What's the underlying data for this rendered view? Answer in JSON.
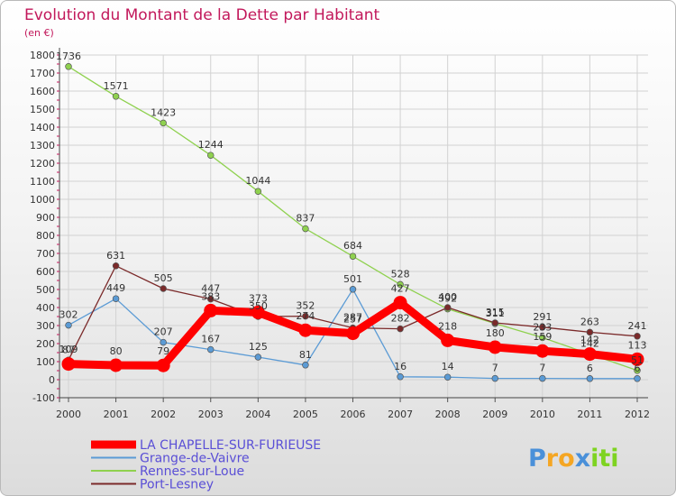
{
  "chart_data": {
    "type": "line",
    "title": "Evolution du Montant de la Dette par Habitant",
    "subtitle": "(en €)",
    "x": [
      "2000",
      "2001",
      "2002",
      "2003",
      "2004",
      "2005",
      "2006",
      "2007",
      "2008",
      "2009",
      "2010",
      "2011",
      "2012"
    ],
    "ylim": [
      -100,
      1800
    ],
    "yticks": [
      "-100",
      "0",
      "100",
      "200",
      "300",
      "400",
      "500",
      "600",
      "700",
      "800",
      "900",
      "1000",
      "1100",
      "1200",
      "1300",
      "1400",
      "1500",
      "1600",
      "1700",
      "1800"
    ],
    "grid": true,
    "legend_position": "bottom-left",
    "series": [
      {
        "name": "LA CHAPELLE-SUR-FURIEUSE",
        "color": "#ff0000",
        "values": [
          87,
          80,
          79,
          383,
          373,
          274,
          257,
          427,
          218,
          180,
          159,
          142,
          113
        ]
      },
      {
        "name": "Grange-de-Vaivre",
        "color": "#5b9bd5",
        "values": [
          302,
          449,
          207,
          167,
          125,
          81,
          501,
          16,
          14,
          7,
          7,
          6,
          6
        ]
      },
      {
        "name": "Rennes-sur-Loue",
        "color": "#8fd14f",
        "values": [
          1736,
          1571,
          1423,
          1244,
          1044,
          837,
          684,
          528,
          392,
          311,
          233,
          142,
          51
        ]
      },
      {
        "name": "Port-Lesney",
        "color": "#7b2a2a",
        "values": [
          109,
          631,
          505,
          447,
          350,
          352,
          287,
          282,
          400,
          315,
          291,
          263,
          241
        ]
      }
    ]
  },
  "brand": {
    "letters": [
      "P",
      "r",
      "o",
      "x",
      "i",
      "t",
      "i"
    ],
    "colors": [
      "#4a90d9",
      "#f5a623",
      "#f5a623",
      "#4a90d9",
      "#7ed321",
      "#7ed321",
      "#7ed321"
    ]
  }
}
